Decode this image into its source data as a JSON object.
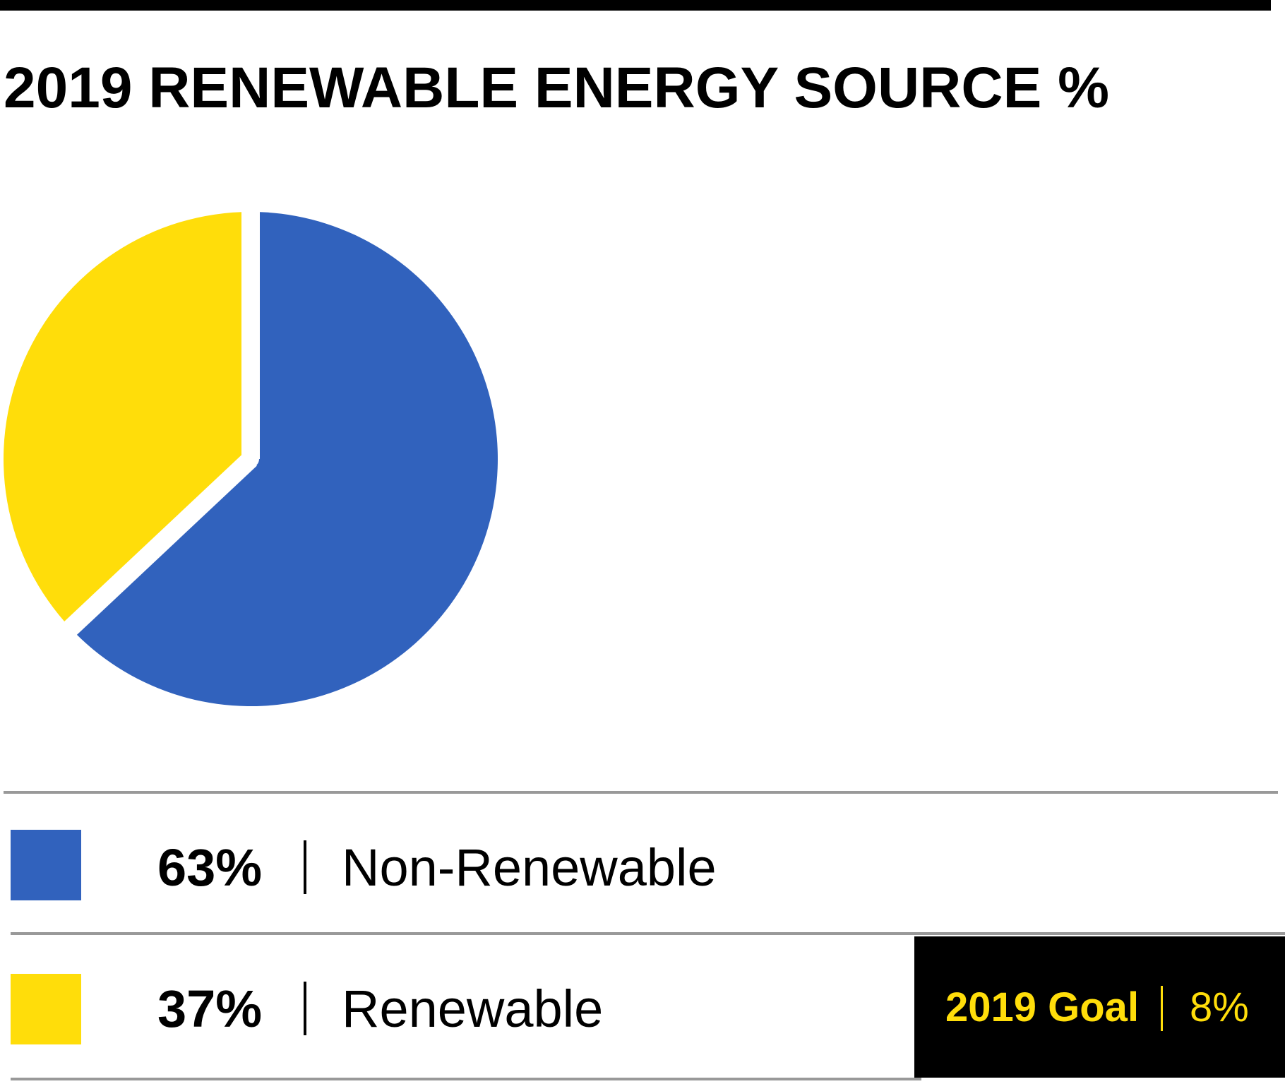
{
  "chart_data": {
    "type": "pie",
    "title": "2019 RENEWABLE ENERGY SOURCE %",
    "series": [
      {
        "name": "Non-Renewable",
        "value": 63,
        "value_label": "63%",
        "color": "#3162bd"
      },
      {
        "name": "Renewable",
        "value": 37,
        "value_label": "37%",
        "color": "#ffdd0a"
      }
    ],
    "legend_placement": "bottom",
    "goal": {
      "label": "2019 Goal",
      "value": 8,
      "value_label": "8%"
    }
  },
  "colors": {
    "non_renewable": "#3162bd",
    "renewable": "#ffdd0a",
    "goal_text": "#ffdd0a",
    "goal_background": "#000000",
    "rule": "#000000",
    "divider": "#999999"
  }
}
